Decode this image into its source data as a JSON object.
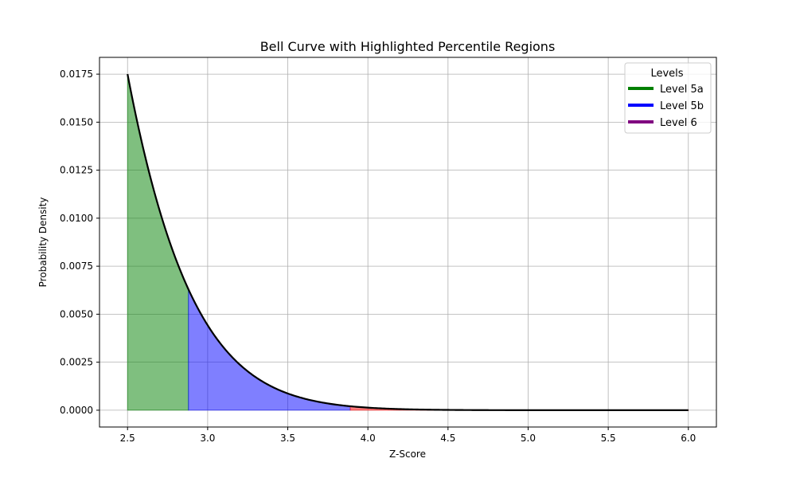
{
  "chart_data": {
    "type": "area",
    "title": "Bell Curve with Highlighted Percentile Regions",
    "xlabel": "Z-Score",
    "ylabel": "Probability Density",
    "xlim": [
      2.325,
      6.175
    ],
    "ylim": [
      -0.000875,
      0.018375
    ],
    "xticks": [
      2.5,
      3.0,
      3.5,
      4.0,
      4.5,
      5.0,
      5.5,
      6.0
    ],
    "xtick_labels": [
      "2.5",
      "3.0",
      "3.5",
      "4.0",
      "4.5",
      "5.0",
      "5.5",
      "6.0"
    ],
    "yticks": [
      0.0,
      0.0025,
      0.005,
      0.0075,
      0.01,
      0.0125,
      0.015,
      0.0175
    ],
    "ytick_labels": [
      "0.0000",
      "0.0025",
      "0.0050",
      "0.0075",
      "0.0100",
      "0.0125",
      "0.0150",
      "0.0175"
    ],
    "grid": true,
    "curve": {
      "x_start": 2.5,
      "x_end": 6.0,
      "peak_density": 0.0175,
      "line_color": "#000000"
    },
    "regions": [
      {
        "name": "Level 5a",
        "x_start": 2.5,
        "x_end": 2.88,
        "fill_color": "#008000",
        "line_color": "#008000"
      },
      {
        "name": "Level 5b",
        "x_start": 2.88,
        "x_end": 3.89,
        "fill_color": "#0000ff",
        "line_color": "#0000ff"
      },
      {
        "name": "Level 6",
        "x_start": 3.89,
        "x_end": 6.0,
        "fill_color": "#ff0000",
        "line_color": "#800080"
      }
    ],
    "legend": {
      "title": "Levels",
      "position": "top-right"
    }
  }
}
